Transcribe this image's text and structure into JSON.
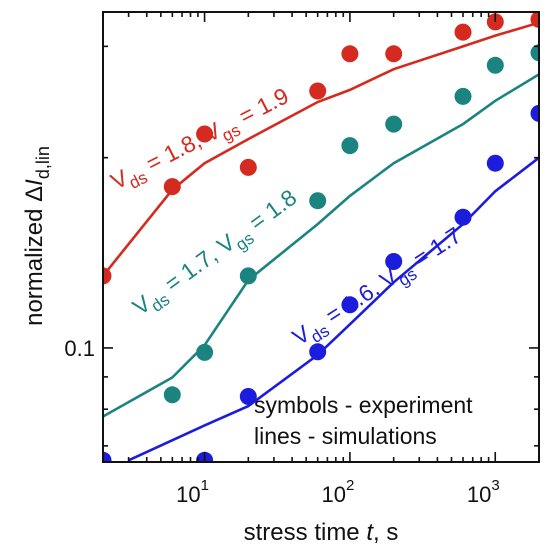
{
  "chart_data": {
    "type": "scatter",
    "xlabel": {
      "prefix": "stress time ",
      "var": "t",
      "suffix": ", s"
    },
    "ylabel": {
      "prefix": "normalized Δ",
      "var": "I",
      "sub": "d,lin"
    },
    "x_scale": "log",
    "y_scale": "log",
    "xlim": [
      2,
      2000
    ],
    "ylim": [
      0.066,
      0.34
    ],
    "x_ticks": [
      {
        "value": 10,
        "base": "10",
        "exp": "1"
      },
      {
        "value": 100,
        "base": "10",
        "exp": "2"
      },
      {
        "value": 1000,
        "base": "10",
        "exp": "3"
      }
    ],
    "y_ticks": [
      {
        "value": 0.1,
        "label": "0.1"
      }
    ],
    "grid": false,
    "colors": {
      "red": "#d42a20",
      "teal": "#1b8480",
      "blue": "#1c1cdc"
    },
    "series": [
      {
        "color": "#d42a20",
        "labels": [
          {
            "text": "V",
            "sub": true
          },
          {
            "text": "ds",
            "sub": true
          },
          {
            "text": " = 1.8, ",
            "sub": false
          },
          {
            "text": "V",
            "sub": false
          },
          {
            "text": "gs",
            "sub": true
          },
          {
            "text": " = 1.9",
            "sub": false
          }
        ],
        "points": [
          [
            2,
            0.13
          ],
          [
            6,
            0.18
          ],
          [
            10,
            0.218
          ],
          [
            20,
            0.193
          ],
          [
            60,
            0.255
          ],
          [
            100,
            0.292
          ],
          [
            200,
            0.292
          ],
          [
            600,
            0.316
          ],
          [
            1000,
            0.328
          ],
          [
            2000,
            0.331
          ]
        ],
        "line": [
          [
            2,
            0.13
          ],
          [
            6,
            0.178
          ],
          [
            10,
            0.196
          ],
          [
            20,
            0.214
          ],
          [
            60,
            0.245
          ],
          [
            100,
            0.256
          ],
          [
            200,
            0.276
          ],
          [
            600,
            0.3
          ],
          [
            1000,
            0.312
          ],
          [
            2000,
            0.327
          ]
        ]
      },
      {
        "color": "#1b8480",
        "points": [
          [
            6,
            0.0843
          ],
          [
            10,
            0.0984
          ],
          [
            20,
            0.13
          ],
          [
            60,
            0.171
          ],
          [
            100,
            0.209
          ],
          [
            200,
            0.226
          ],
          [
            600,
            0.25
          ],
          [
            1000,
            0.28
          ],
          [
            2000,
            0.293
          ]
        ],
        "line": [
          [
            2,
            0.0779
          ],
          [
            6,
            0.0898
          ],
          [
            10,
            0.101
          ],
          [
            20,
            0.128
          ],
          [
            60,
            0.157
          ],
          [
            100,
            0.174
          ],
          [
            200,
            0.196
          ],
          [
            600,
            0.226
          ],
          [
            1000,
            0.246
          ],
          [
            2000,
            0.271
          ]
        ]
      },
      {
        "color": "#1c1cdc",
        "points": [
          [
            2,
            0.0664
          ],
          [
            10,
            0.0664
          ],
          [
            20,
            0.0838
          ],
          [
            60,
            0.0986
          ],
          [
            100,
            0.117
          ],
          [
            200,
            0.137
          ],
          [
            600,
            0.161
          ],
          [
            1000,
            0.196
          ],
          [
            2000,
            0.235
          ]
        ],
        "line": [
          [
            3,
            0.0664
          ],
          [
            10,
            0.0754
          ],
          [
            20,
            0.0809
          ],
          [
            60,
            0.0975
          ],
          [
            100,
            0.109
          ],
          [
            200,
            0.127
          ],
          [
            600,
            0.157
          ],
          [
            1000,
            0.177
          ],
          [
            2000,
            0.2
          ]
        ]
      }
    ],
    "annotations": [
      {
        "color": "#d42a20",
        "parts": [
          {
            "t": "V",
            "sub": false
          },
          {
            "t": "ds",
            "sub": true
          },
          {
            "t": " = 1.8, ",
            "sub": false
          },
          {
            "t": "V",
            "sub": false
          },
          {
            "t": "gs",
            "sub": true
          },
          {
            "t": " = 1.9",
            "sub": false
          }
        ]
      },
      {
        "color": "#1b8480",
        "parts": [
          {
            "t": "V",
            "sub": false
          },
          {
            "t": "ds",
            "sub": true
          },
          {
            "t": " = 1.7, ",
            "sub": false
          },
          {
            "t": "V",
            "sub": false
          },
          {
            "t": "gs",
            "sub": true
          },
          {
            "t": " = 1.8",
            "sub": false
          }
        ]
      },
      {
        "color": "#1c1cdc",
        "parts": [
          {
            "t": "V",
            "sub": false
          },
          {
            "t": "ds",
            "sub": true
          },
          {
            "t": " = 1.6, ",
            "sub": false
          },
          {
            "t": "V",
            "sub": false
          },
          {
            "t": "gs",
            "sub": true
          },
          {
            "t": " = 1.7",
            "sub": false
          }
        ]
      }
    ],
    "notes": [
      "symbols - experiment",
      "lines - simulations"
    ]
  }
}
